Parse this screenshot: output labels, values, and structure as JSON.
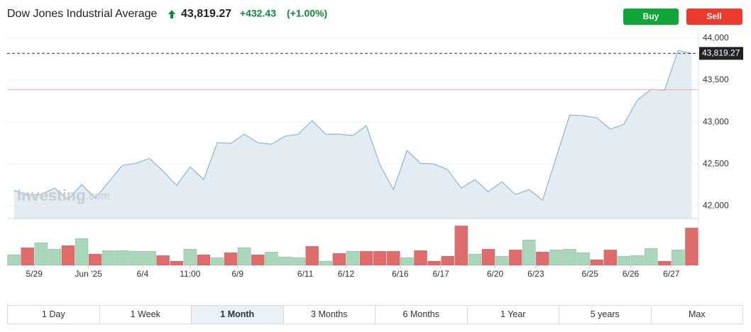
{
  "header": {
    "title": "Dow Jones Industrial Average",
    "change": "+432.43",
    "change_pct": "(+1.00%)"
  },
  "buttons": {
    "buy": "Buy",
    "sell": "Sell"
  },
  "watermark": [
    "Investing",
    ".com"
  ],
  "ranges": [
    "1 Day",
    "1 Week",
    "1 Month",
    "3 Months",
    "6 Months",
    "1 Year",
    "5 years",
    "Max"
  ],
  "selected_range": "1 Month",
  "chart_data": {
    "type": "line",
    "last_price": {
      "value": 43819.27,
      "label": "43,819.27"
    },
    "previous_close": 43386.84,
    "series": [
      {
        "color": "#7aaad0",
        "fill": "#e4ecf3",
        "values": [
          42186,
          42127,
          42136,
          42212,
          42076,
          42254,
          42093,
          42288,
          42483,
          42508,
          42568,
          42415,
          42246,
          42466,
          42314,
          42754,
          42746,
          42856,
          42754,
          42737,
          42831,
          42856,
          43017,
          42856,
          42856,
          42839,
          42958,
          42492,
          42195,
          42661,
          42508,
          42500,
          42432,
          42212,
          42314,
          42169,
          42288,
          42136,
          42195,
          42068,
          42576,
          43085,
          43076,
          43051,
          42915,
          42975,
          43263,
          43390,
          43381,
          43856,
          43819.27
        ]
      }
    ],
    "volume": {
      "values": [
        15,
        25,
        32,
        23,
        28,
        38,
        16,
        21,
        21,
        20,
        20,
        14,
        6,
        23,
        15,
        11,
        18,
        25,
        15,
        19,
        12,
        11,
        27,
        6,
        17,
        20,
        20,
        20,
        20,
        11,
        21,
        6,
        13,
        56,
        16,
        23,
        13,
        22,
        36,
        19,
        22,
        23,
        18,
        8,
        22,
        13,
        14,
        24,
        6,
        22,
        53
      ],
      "colors": [
        "#a8d8b9",
        "#e06b6b",
        "#a8d8b9",
        "#a8d8b9",
        "#e06b6b",
        "#a8d8b9",
        "#e06b6b",
        "#a8d8b9",
        "#a8d8b9",
        "#a8d8b9",
        "#a8d8b9",
        "#e06b6b",
        "#e06b6b",
        "#a8d8b9",
        "#e06b6b",
        "#a8d8b9",
        "#e06b6b",
        "#a8d8b9",
        "#e06b6b",
        "#a8d8b9",
        "#a8d8b9",
        "#a8d8b9",
        "#e06b6b",
        "#a8d8b9",
        "#e06b6b",
        "#a8d8b9",
        "#e06b6b",
        "#e06b6b",
        "#e06b6b",
        "#a8d8b9",
        "#e06b6b",
        "#e06b6b",
        "#e06b6b",
        "#e06b6b",
        "#a8d8b9",
        "#e06b6b",
        "#a8d8b9",
        "#e06b6b",
        "#a8d8b9",
        "#e06b6b",
        "#a8d8b9",
        "#a8d8b9",
        "#a8d8b9",
        "#e06b6b",
        "#e06b6b",
        "#a8d8b9",
        "#a8d8b9",
        "#a8d8b9",
        "#e06b6b",
        "#a8d8b9",
        "#e06b6b"
      ]
    },
    "xlim": [
      0,
      51
    ],
    "xticks": [
      {
        "value": 2,
        "label": "5/29"
      },
      {
        "value": 6,
        "label": "Jun '25"
      },
      {
        "value": 10,
        "label": "6/4"
      },
      {
        "value": 13.5,
        "label": "11:00"
      },
      {
        "value": 17,
        "label": "6/9"
      },
      {
        "value": 22,
        "label": "6/11"
      },
      {
        "value": 25,
        "label": "6/12"
      },
      {
        "value": 29,
        "label": "6/16"
      },
      {
        "value": 32,
        "label": "6/17"
      },
      {
        "value": 36,
        "label": "6/20"
      },
      {
        "value": 39,
        "label": "6/23"
      },
      {
        "value": 43,
        "label": "6/25"
      },
      {
        "value": 46,
        "label": "6/26"
      },
      {
        "value": 49,
        "label": "6/27"
      }
    ],
    "ylim": [
      41850,
      44050
    ],
    "yticks": [
      {
        "value": 42000,
        "label": "42,000"
      },
      {
        "value": 42500,
        "label": "42,500"
      },
      {
        "value": 43000,
        "label": "43,000"
      },
      {
        "value": 43500,
        "label": "43,500"
      },
      {
        "value": 44000,
        "label": "44,000"
      }
    ],
    "grid": true
  }
}
